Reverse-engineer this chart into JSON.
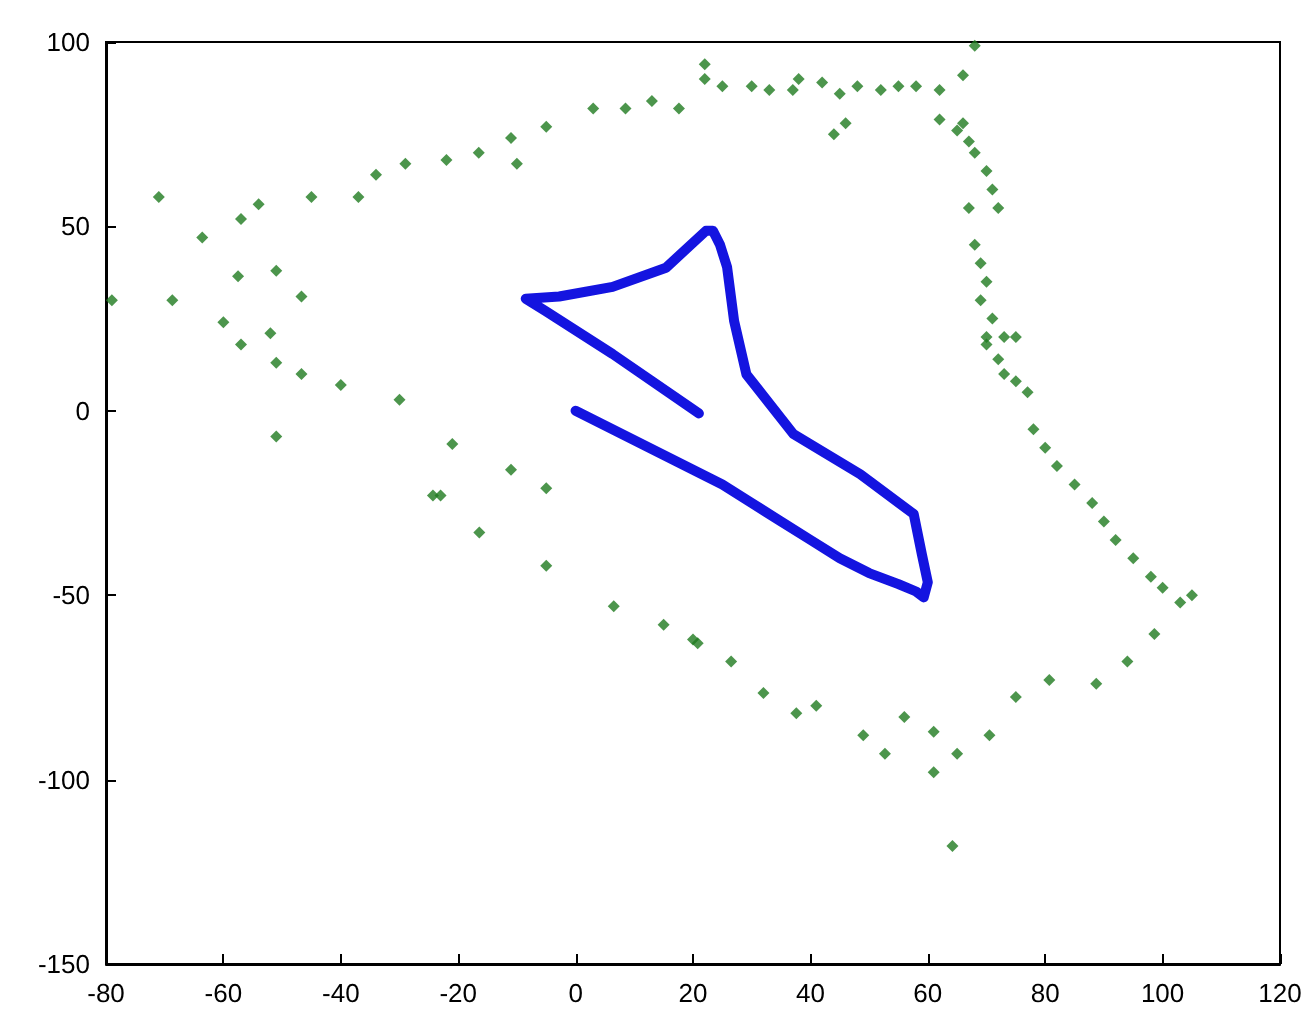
{
  "chart_data": {
    "type": "scatter",
    "xlim": [
      -80,
      120
    ],
    "xticks": [
      -80,
      -60,
      -40,
      -20,
      0,
      20,
      40,
      60,
      80,
      100,
      120
    ],
    "ylim": [
      -150,
      100
    ],
    "yticks": [
      -150,
      -100,
      -50,
      0,
      50,
      100
    ],
    "grid": false,
    "series": [
      {
        "marker": "diamond",
        "color": "#1f7a1f",
        "x": [
          -79,
          -71,
          -68.7,
          -63.6,
          -60,
          -57.5,
          -57,
          -57,
          -54,
          -52,
          -51,
          -51,
          -51,
          -46.7,
          -46.7,
          -45,
          -40,
          -37,
          -34,
          -30,
          -29,
          -24.3,
          -23,
          -22,
          -21,
          -16.4,
          -16.5,
          -11,
          -11,
          -10,
          -5,
          -5,
          -5,
          3,
          6.5,
          8.5,
          13,
          15,
          17.6,
          20,
          20.8,
          22,
          22,
          25,
          26.5,
          30,
          32,
          33,
          37,
          37.6,
          38,
          41,
          42,
          44,
          45,
          46,
          48,
          49,
          52,
          52.7,
          55,
          56,
          58,
          61,
          61,
          62,
          62,
          64.2,
          65,
          65,
          66,
          66,
          67,
          67,
          68,
          68,
          68,
          69,
          69,
          70,
          70,
          70,
          70,
          70.5,
          71,
          71,
          72,
          72,
          73,
          73,
          75,
          75,
          75,
          77,
          78,
          80,
          80.7,
          82,
          85,
          88,
          88.7,
          90,
          92,
          94,
          95,
          98,
          98.6,
          100,
          103,
          105
        ],
        "values": [
          30,
          58,
          30,
          47,
          24,
          36.5,
          18,
          52,
          56,
          21,
          13,
          38,
          -7,
          10,
          31,
          58,
          7,
          58,
          64,
          3,
          67,
          -23,
          -23,
          68,
          -9,
          -33,
          70,
          -16,
          74,
          67,
          -42,
          -21,
          77,
          82,
          -53,
          82,
          84,
          -58,
          82,
          -62,
          -63,
          94,
          90,
          88,
          -68,
          88,
          -76.5,
          87,
          87,
          -82,
          90,
          -80,
          89,
          75,
          86,
          78,
          88,
          -88,
          87,
          -93,
          88,
          -83,
          88,
          -87,
          -98,
          87,
          79,
          -118,
          -93,
          76,
          91,
          78,
          73,
          55,
          99,
          70,
          45,
          40,
          30,
          35,
          20,
          18,
          65,
          -88,
          60,
          25,
          55,
          14,
          20,
          10,
          20,
          8,
          -77.6,
          5,
          -5,
          -10,
          -73,
          -15,
          -20,
          -25,
          -74,
          -30,
          -35,
          -68,
          -40,
          -45,
          -60.5,
          -48,
          -52,
          -50
        ]
      },
      {
        "type": "line",
        "marker": "none",
        "line_style": "solid",
        "color": "#1414e0",
        "x": [
          0,
          5,
          10,
          15,
          20,
          25,
          30,
          35,
          40,
          45,
          50,
          55,
          58,
          59.3,
          60,
          59,
          57.6,
          48.5,
          37.1,
          29.1,
          27,
          25.8,
          24.6,
          23.4,
          22.2,
          15.4,
          6.3,
          -2.8,
          -8.5,
          -5.2,
          6.3,
          21
        ],
        "values": [
          0,
          -4,
          -8,
          -12,
          -16,
          -20,
          -25,
          -30,
          -35,
          -40,
          -44,
          -47,
          -49,
          -50.6,
          -46.5,
          -39,
          -28,
          -17.2,
          -6.3,
          9.9,
          24.4,
          39,
          45,
          48.8,
          48.8,
          38.8,
          33.6,
          31,
          30.4,
          27.1,
          15.4,
          -0.7
        ]
      }
    ]
  }
}
